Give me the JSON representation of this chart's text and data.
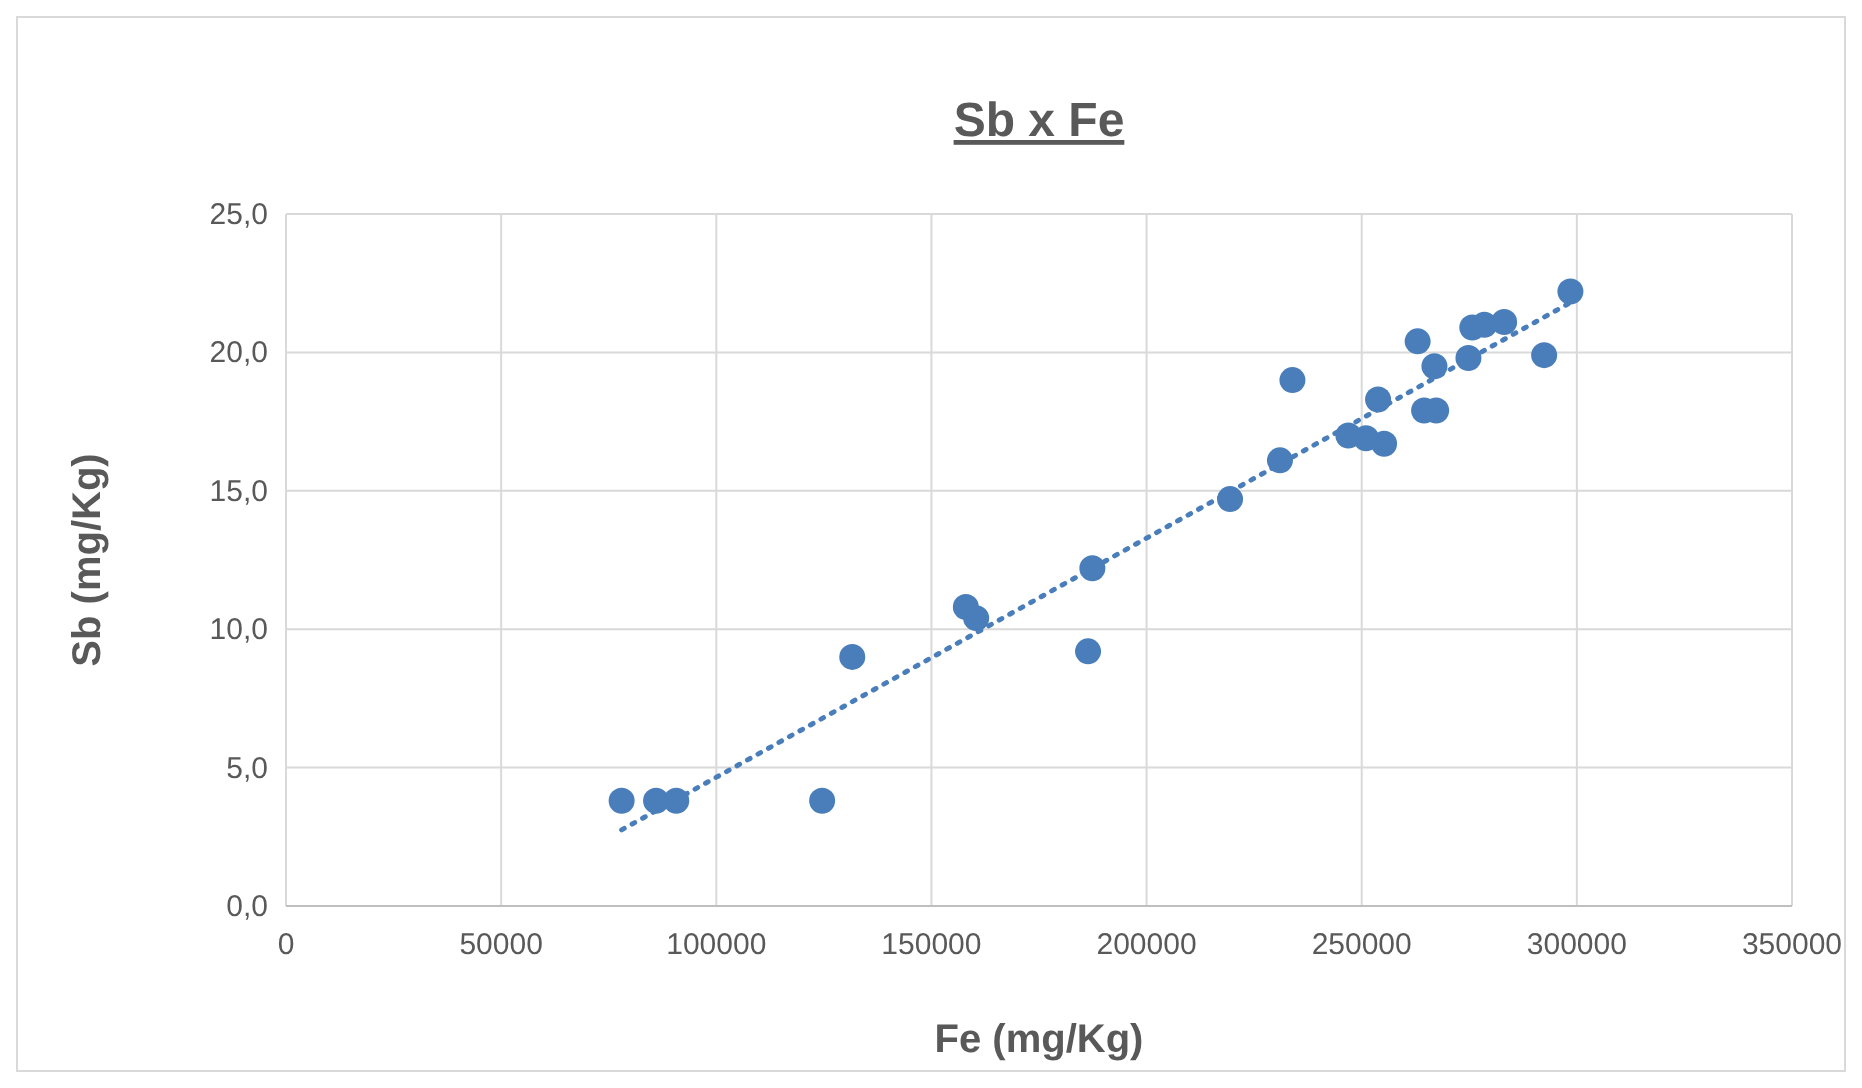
{
  "chart_data": {
    "type": "scatter",
    "title": "Sb x Fe",
    "xlabel": "Fe (mg/Kg)",
    "ylabel": "Sb (mg/Kg)",
    "xlim": [
      0,
      350000
    ],
    "xticks": [
      0,
      50000,
      100000,
      150000,
      200000,
      250000,
      300000,
      350000
    ],
    "ylim": [
      0,
      25
    ],
    "yticks": [
      {
        "value": 0,
        "label": "0,0"
      },
      {
        "value": 5,
        "label": "5,0"
      },
      {
        "value": 10,
        "label": "10,0"
      },
      {
        "value": 15,
        "label": "15,0"
      },
      {
        "value": 20,
        "label": "20,0"
      },
      {
        "value": 25,
        "label": "25,0"
      }
    ],
    "grid": true,
    "marker": "circle",
    "series": [
      {
        "color": "#4a7ebb",
        "x": [
          78000,
          86000,
          90700,
          124600,
          131600,
          158000,
          160400,
          187400,
          186400,
          219400,
          231000,
          233900,
          246900,
          251000,
          255200,
          253800,
          263000,
          264500,
          267300,
          266900,
          274800,
          275700,
          278500,
          283100,
          292400,
          298500
        ],
        "values": [
          3.8,
          3.8,
          3.8,
          3.8,
          9.0,
          10.8,
          10.4,
          12.2,
          9.2,
          14.7,
          16.1,
          19.0,
          17.0,
          16.9,
          16.7,
          18.3,
          20.4,
          17.9,
          17.9,
          19.5,
          19.8,
          20.9,
          21.0,
          21.1,
          19.9,
          22.2
        ]
      },
      {
        "type": "line",
        "color": "#4a7ebb",
        "line_style": "dotted",
        "marker": "none",
        "x": [
          78000,
          298500
        ],
        "values": [
          2.75,
          21.8
        ]
      }
    ]
  }
}
